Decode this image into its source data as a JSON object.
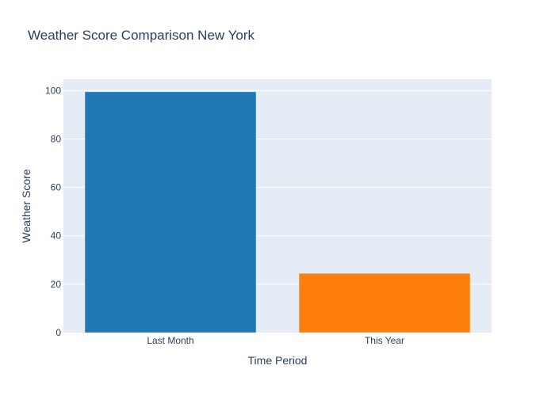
{
  "chart_data": {
    "type": "bar",
    "title": "Weather Score Comparison New York",
    "xlabel": "Time Period",
    "ylabel": "Weather Score",
    "categories": [
      "Last Month",
      "This Year"
    ],
    "values": [
      99.5,
      24.5
    ],
    "colors": [
      "#1f77b4",
      "#ff7f0e"
    ],
    "ylim": [
      0,
      104.7
    ],
    "yticks": [
      0,
      20,
      40,
      60,
      80,
      100
    ],
    "ytick_labels": [
      "0",
      "20",
      "40",
      "60",
      "80",
      "100"
    ],
    "grid": true,
    "legend": "none",
    "plot_background": "#e5ecf6",
    "gridline_color": "#ffffff",
    "text_color": "#2a3f5f"
  }
}
